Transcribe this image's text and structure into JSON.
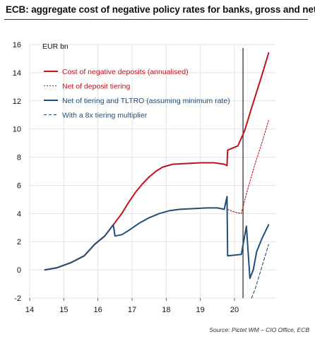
{
  "title": "ECB: aggregate cost of negative policy rates for banks, gross and net",
  "source": "Source: Pictet WM – CIO Office, ECB",
  "colors": {
    "red": "#c0121c",
    "blue": "#1f4e79",
    "grid": "#e3e3e3",
    "vline": "#222222"
  },
  "chart_data": {
    "type": "line",
    "title": "ECB: aggregate cost of negative policy rates for banks, gross and net",
    "ylabel": "EUR bn",
    "xlabel": "",
    "xlim": [
      14,
      21.2
    ],
    "ylim": [
      -2,
      16
    ],
    "x_ticks": [
      "14",
      "15",
      "16",
      "17",
      "18",
      "19",
      "20"
    ],
    "y_ticks": [
      -2,
      0,
      2,
      4,
      6,
      8,
      10,
      12,
      14,
      16
    ],
    "grid": true,
    "legend": "top-left, inside plot",
    "vertical_marker_x": 20.25,
    "series": [
      {
        "name": "Cost of negative deposits (annualised)",
        "style": "solid",
        "color": "red",
        "x": [
          14.45,
          14.8,
          15.2,
          15.6,
          15.9,
          16.2,
          16.45,
          16.7,
          16.9,
          17.1,
          17.3,
          17.5,
          17.7,
          17.9,
          18.2,
          18.6,
          19.0,
          19.4,
          19.7,
          19.78,
          19.8,
          20.1,
          20.3,
          20.5,
          20.8,
          21.0
        ],
        "y": [
          0.0,
          0.15,
          0.5,
          1.0,
          1.8,
          2.4,
          3.2,
          4.0,
          4.8,
          5.5,
          6.1,
          6.6,
          7.0,
          7.3,
          7.5,
          7.55,
          7.6,
          7.6,
          7.5,
          7.4,
          8.5,
          8.8,
          9.9,
          11.5,
          13.8,
          15.4
        ]
      },
      {
        "name": "Net of deposit tiering",
        "style": "dotted",
        "color": "red",
        "x": [
          19.8,
          20.0,
          20.2,
          20.35,
          20.6,
          20.8,
          21.0
        ],
        "y": [
          4.3,
          4.1,
          4.0,
          5.4,
          7.5,
          9.0,
          10.6
        ]
      },
      {
        "name": "Net of tiering and TLTRO (assuming minimum rate)",
        "style": "solid",
        "color": "blue",
        "x": [
          14.45,
          14.8,
          15.2,
          15.6,
          15.9,
          16.2,
          16.45,
          16.5,
          16.7,
          16.9,
          17.2,
          17.5,
          17.8,
          18.1,
          18.4,
          18.8,
          19.2,
          19.5,
          19.7,
          19.78,
          19.8,
          20.2,
          20.35,
          20.45,
          20.55,
          20.65,
          20.8,
          21.0
        ],
        "y": [
          0.0,
          0.15,
          0.5,
          1.0,
          1.8,
          2.4,
          3.2,
          2.4,
          2.5,
          2.8,
          3.3,
          3.7,
          4.0,
          4.2,
          4.3,
          4.35,
          4.4,
          4.4,
          4.3,
          5.2,
          1.0,
          1.1,
          3.1,
          -0.6,
          0.0,
          1.3,
          2.2,
          3.2
        ]
      },
      {
        "name": "With a 8x tiering multiplier",
        "style": "dashed",
        "color": "blue",
        "x": [
          20.5,
          20.6,
          20.8,
          21.0
        ],
        "y": [
          -2.0,
          -1.4,
          0.2,
          1.8
        ]
      }
    ]
  }
}
